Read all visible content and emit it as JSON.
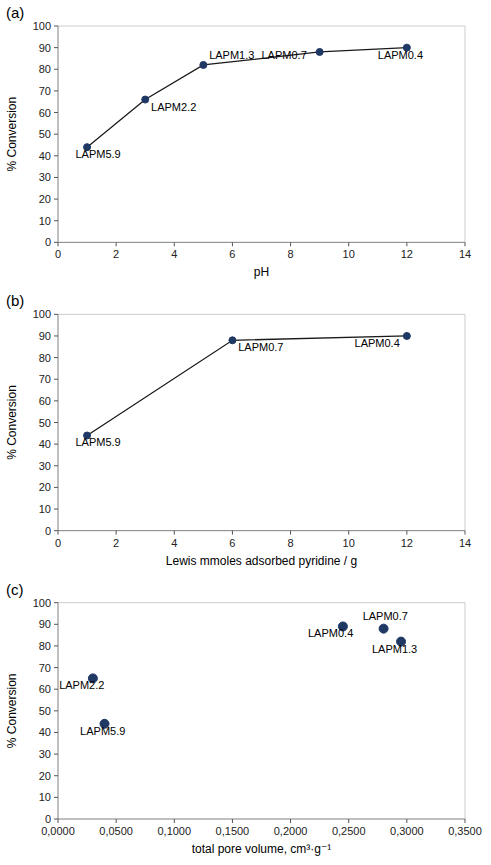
{
  "chart_data": [
    {
      "type": "line",
      "title": "(a)",
      "x_label": "pH",
      "y_label": "% Conversion",
      "x": [
        1,
        3,
        5,
        9,
        12
      ],
      "values": [
        44,
        66,
        82,
        88,
        90
      ],
      "color": "#1a1a1a",
      "colors": [
        "#1f3864",
        "#1f3864",
        "#1f3864",
        "#1f3864",
        "#1f3864"
      ],
      "marker": "circle",
      "annotations": [
        {
          "text": "LAPM5.9",
          "x": 0.6,
          "y": 38
        },
        {
          "text": "LAPM2.2",
          "x": 3.2,
          "y": 60
        },
        {
          "text": "LAPM1.3",
          "x": 5.2,
          "y": 84
        },
        {
          "text": "LAPM0.7",
          "x": 7.0,
          "y": 84
        },
        {
          "text": "LAPM0.4",
          "x": 11.0,
          "y": 84
        }
      ],
      "xlim": [
        0,
        14
      ],
      "ylim": [
        0,
        100
      ],
      "xticks": [
        0,
        2,
        4,
        6,
        8,
        10,
        12,
        14
      ],
      "yticks": [
        0,
        10,
        20,
        30,
        40,
        50,
        60,
        70,
        80,
        90,
        100
      ],
      "grid": false
    },
    {
      "type": "line",
      "title": "(b)",
      "x_label": "Lewis mmoles adsorbed pyridine / g",
      "y_label": "% Conversion",
      "x": [
        1,
        6,
        12
      ],
      "values": [
        44,
        88,
        90
      ],
      "color": "#1a1a1a",
      "colors": [
        "#1f3864",
        "#1f3864",
        "#1f3864"
      ],
      "marker": "circle",
      "annotations": [
        {
          "text": "LAPM5.9",
          "x": 0.6,
          "y": 38
        },
        {
          "text": "LAPM0.7",
          "x": 6.2,
          "y": 82
        },
        {
          "text": "LAPM0.4",
          "x": 10.2,
          "y": 84
        }
      ],
      "xlim": [
        0,
        14
      ],
      "ylim": [
        0,
        100
      ],
      "xticks": [
        0,
        2,
        4,
        6,
        8,
        10,
        12,
        14
      ],
      "yticks": [
        0,
        10,
        20,
        30,
        40,
        50,
        60,
        70,
        80,
        90,
        100
      ],
      "grid": false
    },
    {
      "type": "scatter",
      "title": "(c)",
      "x_label": "total pore volume, cm³·g⁻¹",
      "y_label": "% Conversion",
      "x": [
        0.03,
        0.04,
        0.245,
        0.28,
        0.295
      ],
      "values": [
        65,
        44,
        89,
        88,
        82
      ],
      "color": "#1f3864",
      "marker": "circle",
      "annotations": [
        {
          "text": "LAPM2.2",
          "x": 0.001,
          "y": 59
        },
        {
          "text": "LAPM5.9",
          "x": 0.019,
          "y": 38
        },
        {
          "text": "LAPM0.4",
          "x": 0.215,
          "y": 83
        },
        {
          "text": "LAPM0.7",
          "x": 0.262,
          "y": 91
        },
        {
          "text": "LAPM1.3",
          "x": 0.27,
          "y": 76
        }
      ],
      "xlim": [
        0,
        0.35
      ],
      "ylim": [
        0,
        100
      ],
      "xticks": [
        {
          "value": 0.0,
          "label": "0,0000"
        },
        {
          "value": 0.05,
          "label": "0,0500"
        },
        {
          "value": 0.1,
          "label": "0,1000"
        },
        {
          "value": 0.15,
          "label": "0,1500"
        },
        {
          "value": 0.2,
          "label": "0,2000"
        },
        {
          "value": 0.25,
          "label": "0,2500"
        },
        {
          "value": 0.3,
          "label": "0,3000"
        },
        {
          "value": 0.35,
          "label": "0,3500"
        }
      ],
      "yticks": [
        0,
        10,
        20,
        30,
        40,
        50,
        60,
        70,
        80,
        90,
        100
      ],
      "grid": false
    }
  ]
}
